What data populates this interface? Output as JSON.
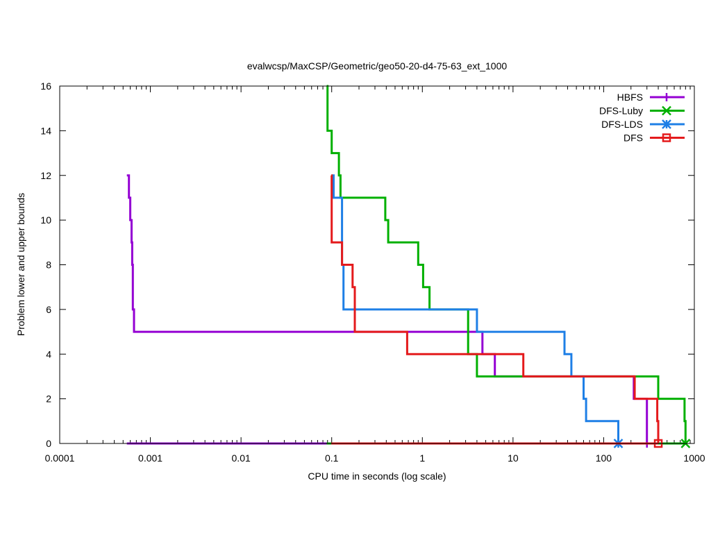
{
  "chart_data": {
    "type": "line",
    "title": "evalwcsp/MaxCSP/Geometric/geo50-20-d4-75-63_ext_1000",
    "xlabel": "CPU time in seconds (log scale)",
    "ylabel": "Problem lower and upper bounds",
    "xscale": "log",
    "xlim": [
      0.0001,
      1000
    ],
    "ylim": [
      0,
      16
    ],
    "xticks": [
      0.0001,
      0.001,
      0.01,
      0.1,
      1,
      10,
      100,
      1000
    ],
    "xtick_labels": [
      "0.0001",
      "0.001",
      "0.01",
      "0.1",
      "1",
      "10",
      "100",
      "1000"
    ],
    "yticks": [
      0,
      2,
      4,
      6,
      8,
      10,
      12,
      14,
      16
    ],
    "ytick_labels": [
      "0",
      "2",
      "4",
      "6",
      "8",
      "10",
      "12",
      "14",
      "16"
    ],
    "legend_position": "top-right",
    "series": [
      {
        "name": "HBFS",
        "color": "#9400d3",
        "marker": "plus",
        "upper": [
          [
            0.00055,
            12
          ],
          [
            0.00058,
            11
          ],
          [
            0.0006,
            10
          ],
          [
            0.00062,
            9
          ],
          [
            0.00063,
            8
          ],
          [
            0.00064,
            6
          ],
          [
            0.00066,
            5
          ],
          [
            4.6,
            4
          ],
          [
            6.3,
            3
          ],
          [
            215,
            2
          ],
          [
            300,
            0
          ]
        ],
        "lower": [
          [
            0.00055,
            0
          ],
          [
            300,
            0
          ]
        ],
        "end": [
          300,
          0
        ]
      },
      {
        "name": "DFS-Luby",
        "color": "#00b000",
        "marker": "x",
        "upper": [
          [
            0.088,
            16
          ],
          [
            0.09,
            14
          ],
          [
            0.1,
            13
          ],
          [
            0.12,
            12
          ],
          [
            0.125,
            11
          ],
          [
            0.39,
            10
          ],
          [
            0.42,
            9
          ],
          [
            0.9,
            8
          ],
          [
            1.02,
            7
          ],
          [
            1.2,
            6
          ],
          [
            3.2,
            4
          ],
          [
            4.0,
            3
          ],
          [
            400,
            2
          ],
          [
            780,
            1
          ],
          [
            800,
            0
          ]
        ],
        "lower": [
          [
            0.088,
            0
          ],
          [
            800,
            0
          ]
        ],
        "end": [
          800,
          0
        ]
      },
      {
        "name": "DFS-LDS",
        "color": "#1e7fe6",
        "marker": "star",
        "upper": [
          [
            0.1,
            12
          ],
          [
            0.105,
            11
          ],
          [
            0.13,
            8
          ],
          [
            0.135,
            6
          ],
          [
            4.0,
            5
          ],
          [
            37,
            4
          ],
          [
            44,
            3
          ],
          [
            60,
            2
          ],
          [
            64,
            1
          ],
          [
            145,
            0
          ]
        ],
        "lower": [
          [
            0.1,
            0
          ],
          [
            145,
            0
          ]
        ],
        "end": [
          145,
          0
        ]
      },
      {
        "name": "DFS",
        "color": "#e41a1c",
        "marker": "square",
        "upper": [
          [
            0.099,
            12
          ],
          [
            0.1,
            9
          ],
          [
            0.13,
            8
          ],
          [
            0.17,
            7
          ],
          [
            0.18,
            5
          ],
          [
            0.68,
            4
          ],
          [
            13,
            3
          ],
          [
            220,
            2
          ],
          [
            390,
            1
          ],
          [
            400,
            0
          ]
        ],
        "lower": [
          [
            0.099,
            0
          ],
          [
            400,
            0
          ]
        ],
        "end": [
          400,
          0
        ]
      }
    ]
  }
}
